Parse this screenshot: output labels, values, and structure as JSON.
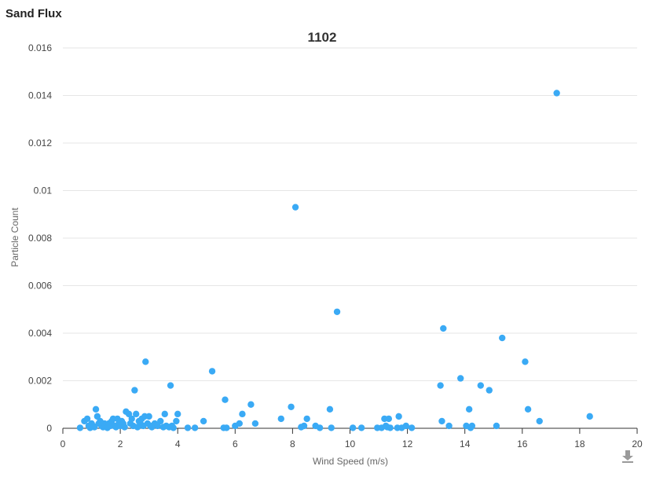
{
  "panel": {
    "title": "Sand Flux"
  },
  "icons": {
    "download": "download-icon"
  },
  "colors": {
    "point": "#3aaaf5",
    "grid": "#e6e6e6",
    "axis": "#333333"
  },
  "chart_data": {
    "type": "scatter",
    "title": "1102",
    "xlabel": "Wind Speed (m/s)",
    "ylabel": "Particle Count",
    "xlim": [
      0,
      20
    ],
    "ylim": [
      0,
      0.016
    ],
    "xticks": [
      "0",
      "2",
      "4",
      "6",
      "8",
      "10",
      "12",
      "14",
      "16",
      "18",
      "20"
    ],
    "yticks": [
      "0",
      "0.002",
      "0.004",
      "0.006",
      "0.008",
      "0.01",
      "0.012",
      "0.014",
      "0.016"
    ],
    "grid": true,
    "series": [
      {
        "points": [
          [
            0.6,
            2e-05
          ],
          [
            0.75,
            0.0003
          ],
          [
            0.85,
            0.0004
          ],
          [
            0.9,
            0.0001
          ],
          [
            0.95,
            2e-05
          ],
          [
            1.0,
            0.0002
          ],
          [
            1.05,
            0.0001
          ],
          [
            1.1,
            5e-05
          ],
          [
            1.15,
            0.0008
          ],
          [
            1.2,
            0.0005
          ],
          [
            1.25,
            0.0002
          ],
          [
            1.3,
            0.0003
          ],
          [
            1.35,
            0.0001
          ],
          [
            1.4,
            5e-05
          ],
          [
            1.45,
            0.0002
          ],
          [
            1.5,
            0.0001
          ],
          [
            1.55,
            2e-05
          ],
          [
            1.6,
            0.0002
          ],
          [
            1.65,
            0.0001
          ],
          [
            1.7,
            0.0003
          ],
          [
            1.75,
            0.0004
          ],
          [
            1.8,
            0.0001
          ],
          [
            1.85,
            5e-05
          ],
          [
            1.9,
            0.0004
          ],
          [
            1.95,
            0.0002
          ],
          [
            2.0,
            0.0001
          ],
          [
            2.05,
            0.0003
          ],
          [
            2.1,
            0.0002
          ],
          [
            2.15,
            5e-05
          ],
          [
            2.2,
            0.0007
          ],
          [
            2.3,
            0.0006
          ],
          [
            2.35,
            0.0002
          ],
          [
            2.4,
            0.0004
          ],
          [
            2.45,
            0.0001
          ],
          [
            2.5,
            0.0016
          ],
          [
            2.55,
            0.0006
          ],
          [
            2.6,
            5e-05
          ],
          [
            2.65,
            0.0003
          ],
          [
            2.7,
            0.0002
          ],
          [
            2.75,
            0.0004
          ],
          [
            2.8,
            0.0001
          ],
          [
            2.85,
            0.0005
          ],
          [
            2.88,
            0.0028
          ],
          [
            2.95,
            0.0002
          ],
          [
            3.0,
            0.0005
          ],
          [
            3.05,
            0.0001
          ],
          [
            3.1,
            5e-05
          ],
          [
            3.2,
            0.0002
          ],
          [
            3.3,
            0.0001
          ],
          [
            3.4,
            0.0003
          ],
          [
            3.5,
            5e-05
          ],
          [
            3.55,
            0.0006
          ],
          [
            3.6,
            0.0001
          ],
          [
            3.7,
            5e-05
          ],
          [
            3.75,
            0.0018
          ],
          [
            3.8,
            0.0001
          ],
          [
            3.85,
            2e-05
          ],
          [
            3.95,
            0.0003
          ],
          [
            4.0,
            0.0006
          ],
          [
            4.35,
            2e-05
          ],
          [
            4.6,
            2e-05
          ],
          [
            4.9,
            0.0003
          ],
          [
            5.2,
            0.0024
          ],
          [
            5.6,
            2e-05
          ],
          [
            5.65,
            0.0012
          ],
          [
            5.7,
            2e-05
          ],
          [
            6.0,
            0.0001
          ],
          [
            6.15,
            0.0002
          ],
          [
            6.25,
            0.0006
          ],
          [
            6.55,
            0.001
          ],
          [
            6.7,
            0.0002
          ],
          [
            7.6,
            0.0004
          ],
          [
            7.95,
            0.0009
          ],
          [
            8.1,
            0.0093
          ],
          [
            8.3,
            5e-05
          ],
          [
            8.4,
            0.0001
          ],
          [
            8.5,
            0.0004
          ],
          [
            8.8,
            0.0001
          ],
          [
            8.95,
            2e-05
          ],
          [
            9.3,
            0.0008
          ],
          [
            9.35,
            2e-05
          ],
          [
            9.55,
            0.0049
          ],
          [
            10.1,
            2e-05
          ],
          [
            10.4,
            2e-05
          ],
          [
            10.95,
            2e-05
          ],
          [
            11.1,
            2e-05
          ],
          [
            11.2,
            0.0004
          ],
          [
            11.25,
            0.0001
          ],
          [
            11.3,
            5e-05
          ],
          [
            11.35,
            0.0004
          ],
          [
            11.4,
            2e-05
          ],
          [
            11.65,
            2e-05
          ],
          [
            11.7,
            0.0005
          ],
          [
            11.8,
            2e-05
          ],
          [
            11.95,
            0.0001
          ],
          [
            12.15,
            2e-05
          ],
          [
            13.15,
            0.0018
          ],
          [
            13.2,
            0.0003
          ],
          [
            13.25,
            0.0042
          ],
          [
            13.45,
            0.0001
          ],
          [
            13.85,
            0.0021
          ],
          [
            14.05,
            0.0001
          ],
          [
            14.15,
            0.0008
          ],
          [
            14.2,
            2e-05
          ],
          [
            14.25,
            0.0001
          ],
          [
            14.55,
            0.0018
          ],
          [
            14.85,
            0.0016
          ],
          [
            15.1,
            0.0001
          ],
          [
            15.3,
            0.0038
          ],
          [
            16.1,
            0.0028
          ],
          [
            16.2,
            0.0008
          ],
          [
            16.6,
            0.0003
          ],
          [
            17.2,
            0.0141
          ],
          [
            18.35,
            0.0005
          ]
        ]
      }
    ]
  }
}
